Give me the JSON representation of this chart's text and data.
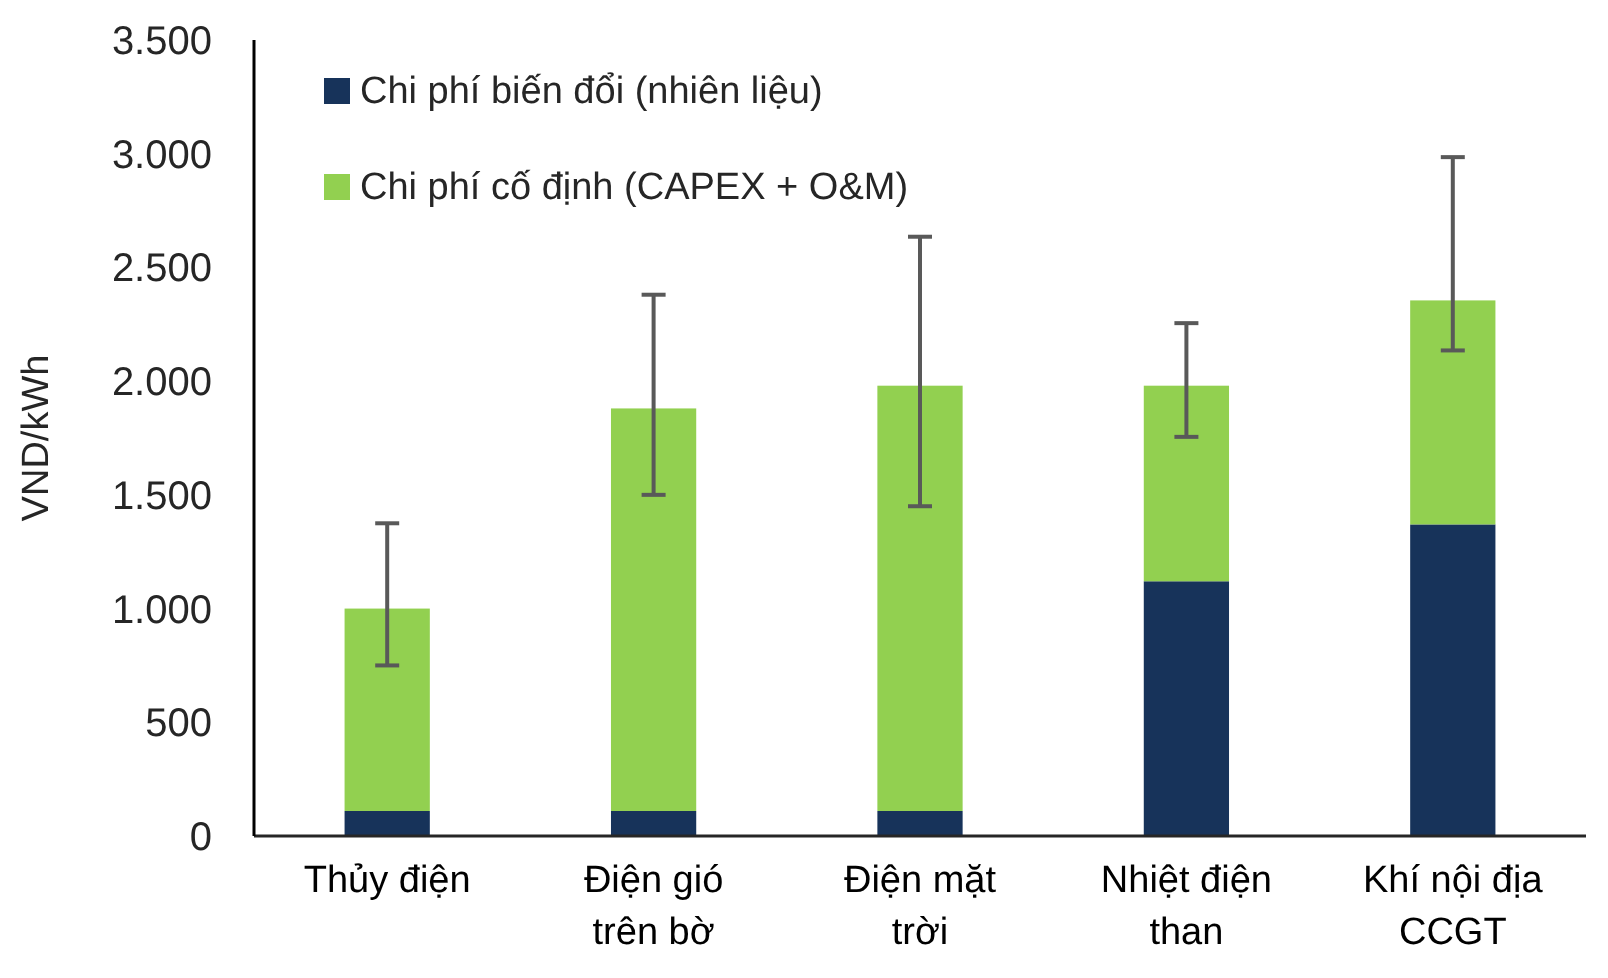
{
  "chart_data": {
    "type": "bar",
    "stacked": true,
    "ylabel": "VND/kWh",
    "categories": [
      "Thủy điện",
      "Điện gió trên bờ",
      "Điện mặt trời",
      "Nhiệt điện than",
      "Khí nội địa CCGT"
    ],
    "series": [
      {
        "name": "Chi phí biến đổi (nhiên liệu)",
        "color": "#17335a",
        "values": [
          110,
          110,
          110,
          1120,
          1370
        ]
      },
      {
        "name": "Chi phí cố định (CAPEX + O&M)",
        "color": "#92d050",
        "values": [
          890,
          1770,
          1870,
          860,
          985
        ],
        "errors": [
          [
            750,
            1375
          ],
          [
            1500,
            2380
          ],
          [
            1450,
            2635
          ],
          [
            1755,
            2255
          ],
          [
            2135,
            2985
          ]
        ]
      }
    ],
    "ylim": [
      0,
      3500
    ],
    "yticks": [
      0,
      500,
      {
        "value": 1000,
        "label": "1.000"
      },
      {
        "value": 1500,
        "label": "1.500"
      },
      {
        "value": 2000,
        "label": "2.000"
      },
      {
        "value": 2500,
        "label": "2.500"
      },
      {
        "value": 3000,
        "label": "3.000"
      },
      {
        "value": 3500,
        "label": "3.500"
      }
    ],
    "grid": false,
    "legend": "top left"
  }
}
